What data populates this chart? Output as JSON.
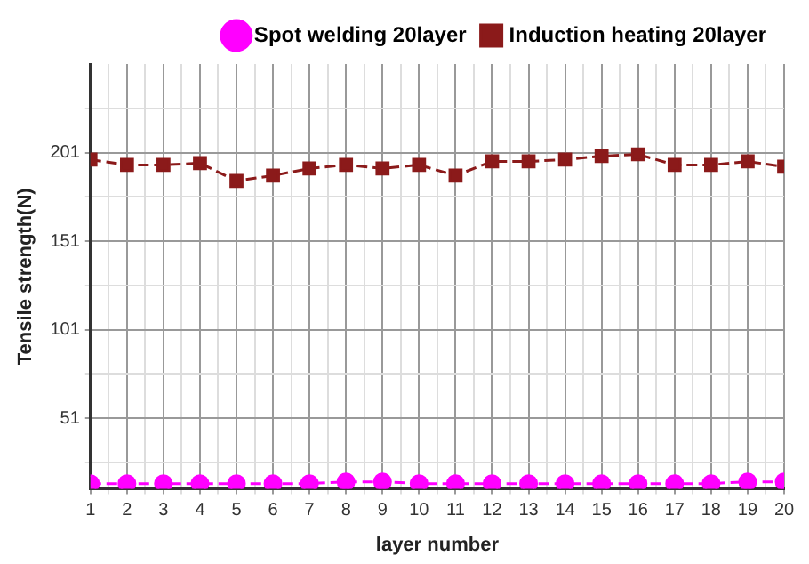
{
  "chart_data": {
    "type": "line",
    "xlabel": "layer number",
    "ylabel": "Tensile strength(N)",
    "x": [
      1,
      2,
      3,
      4,
      5,
      6,
      7,
      8,
      9,
      10,
      11,
      12,
      13,
      14,
      15,
      16,
      17,
      18,
      19,
      20
    ],
    "series": [
      {
        "name": "Spot welding 20layer",
        "color": "#ff00ff",
        "marker": "circle",
        "values": [
          14,
          14,
          14,
          14,
          14,
          14,
          14,
          15,
          15,
          14,
          14,
          14,
          14,
          14,
          14,
          14,
          14,
          14,
          15,
          15
        ]
      },
      {
        "name": "Induction heating 20layer",
        "color": "#8b1a1a",
        "marker": "square",
        "values": [
          197,
          194,
          194,
          195,
          185,
          188,
          192,
          194,
          192,
          194,
          188,
          196,
          196,
          197,
          199,
          200,
          194,
          194,
          196,
          193
        ]
      }
    ],
    "line_style": "dashed",
    "xlim": [
      1,
      20
    ],
    "xticks": [
      1,
      {
        "value": 1.5,
        "label": null
      },
      2,
      {
        "value": 2.5,
        "label": null
      },
      3,
      {
        "value": 3.5,
        "label": null
      },
      4,
      {
        "value": 4.5,
        "label": null
      },
      5,
      {
        "value": 5.5,
        "label": null
      },
      6,
      {
        "value": 6.5,
        "label": null
      },
      7,
      {
        "value": 7.5,
        "label": null
      },
      8,
      {
        "value": 8.5,
        "label": null
      },
      9,
      {
        "value": 9.5,
        "label": null
      },
      10,
      {
        "value": 10.5,
        "label": null
      },
      11,
      {
        "value": 11.5,
        "label": null
      },
      12,
      {
        "value": 12.5,
        "label": null
      },
      13,
      {
        "value": 13.5,
        "label": null
      },
      14,
      {
        "value": 14.5,
        "label": null
      },
      15,
      {
        "value": 15.5,
        "label": null
      },
      16,
      {
        "value": 16.5,
        "label": null
      },
      17,
      {
        "value": 17.5,
        "label": null
      },
      18,
      {
        "value": 18.5,
        "label": null
      },
      19,
      {
        "value": 19.5,
        "label": null
      },
      20
    ],
    "ylim": [
      11,
      251
    ],
    "yticks": [
      {
        "value": 26,
        "label": null
      },
      51,
      {
        "value": 76,
        "label": null
      },
      101,
      {
        "value": 126,
        "label": null
      },
      151,
      {
        "value": 176,
        "label": null
      },
      201,
      {
        "value": 226,
        "label": null
      }
    ],
    "grid": true,
    "legend": "top right"
  }
}
